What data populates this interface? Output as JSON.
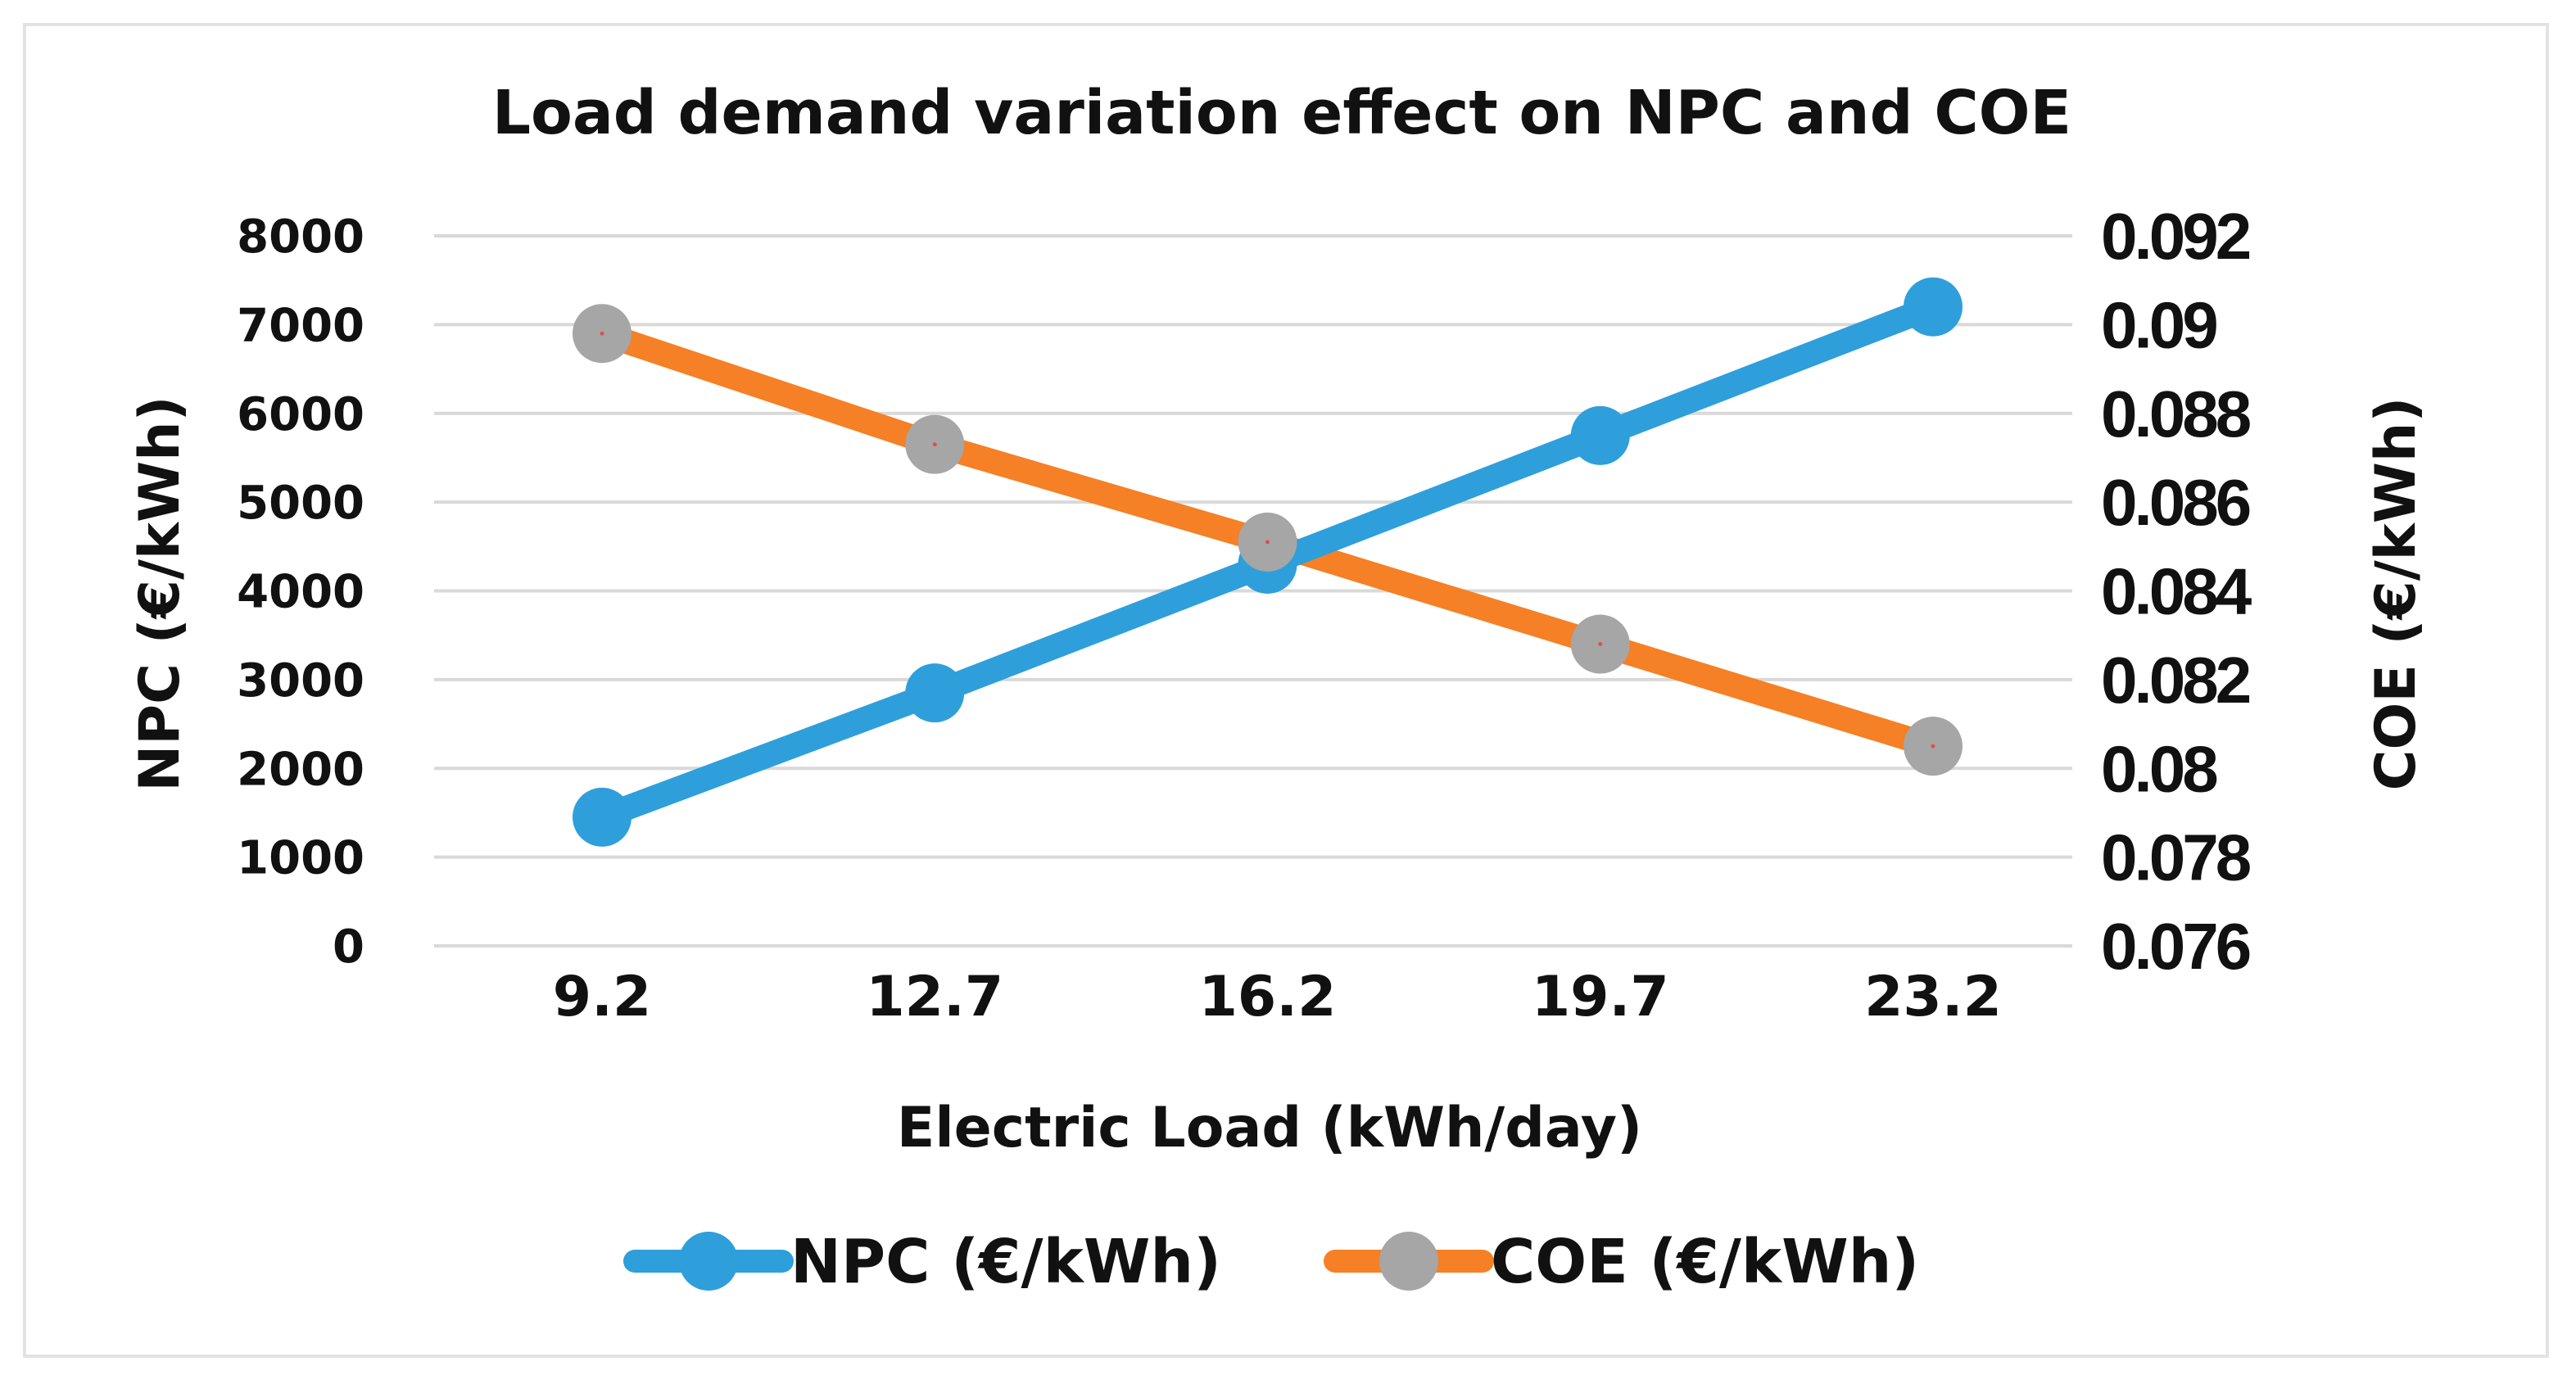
{
  "chart_data": {
    "type": "line",
    "title": "Load demand variation effect on NPC and COE",
    "xlabel": "Electric Load (kWh/day)",
    "ylabel_left": "NPC (€/kWh)",
    "ylabel_right": "COE (€/kWh)",
    "categories": [
      "9.2",
      "12.7",
      "16.2",
      "19.7",
      "23.2"
    ],
    "y_left": {
      "ylim": [
        0,
        8000
      ],
      "ticks": [
        "0",
        "1000",
        "2000",
        "3000",
        "4000",
        "5000",
        "6000",
        "7000",
        "8000"
      ]
    },
    "y_right": {
      "ylim": [
        0.076,
        0.092
      ],
      "ticks": [
        "0.076",
        "0.078",
        "0.08",
        "0.082",
        "0.084",
        "0.086",
        "0.088",
        "0.09",
        "0.092"
      ]
    },
    "series": [
      {
        "name": "NPC (€/kWh)",
        "axis": "left",
        "values": [
          1450,
          2850,
          4300,
          5750,
          7200
        ],
        "line_color": "#2e9fdb",
        "marker_color": "#2e9fdb"
      },
      {
        "name": "COE (€/kWh)",
        "axis": "right",
        "values": [
          0.0898,
          0.0873,
          0.0851,
          0.0828,
          0.0805
        ],
        "line_color": "#f58025",
        "marker_color": "#a6a6a6"
      }
    ],
    "grid": true,
    "legend_position": "bottom"
  }
}
